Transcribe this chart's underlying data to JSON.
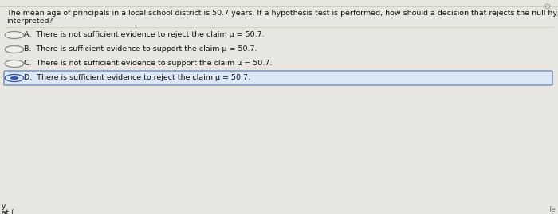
{
  "bg_color": "#e8e6e0",
  "content_bg": "#f0eeea",
  "question": "The mean age of principals in a local school district is 50.7 years. If a hypothesis test is performed, how should a decision that rejects the null hypothesis be interpreted?",
  "options": [
    {
      "letter": "A.",
      "text": "There is not sufficient evidence to reject the claim μ = 50.7."
    },
    {
      "letter": "B.",
      "text": "There is sufficient evidence to support the claim μ = 50.7."
    },
    {
      "letter": "C.",
      "text": "There is not sufficient evidence to support the claim μ = 50.7."
    },
    {
      "letter": "D.",
      "text": "There is sufficient evidence to reject the claim μ = 50.7."
    }
  ],
  "selected_option": 3,
  "question_fontsize": 6.8,
  "option_fontsize": 6.8,
  "text_color": "#111111",
  "selected_box_facecolor": "#dce8f8",
  "selected_box_edgecolor": "#5577aa",
  "radio_edge_color": "#888888",
  "radio_selected_edge": "#3355aa",
  "radio_selected_fill": "#3355aa",
  "gear_color": "#aaaaaa",
  "top_line_color": "#ccccaa",
  "separator_color": "#ccccaa",
  "bottom_left_text1": "y",
  "bottom_left_text2": "at (",
  "bottom_right_text": "fe"
}
